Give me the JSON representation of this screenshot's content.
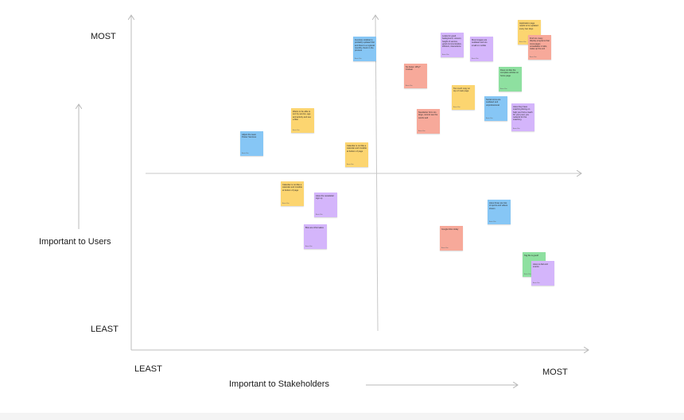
{
  "axes": {
    "y_top": "MOST",
    "y_bottom": "LEAST",
    "y_title": "Important to Users",
    "x_left": "LEAST",
    "x_right": "MOST",
    "x_title": "Important to Stakeholders"
  },
  "colors": {
    "yellow": "#fcd570",
    "purple": "#d4b5fb",
    "pink": "#f7a99a",
    "blue": "#86c6f5",
    "green": "#8ee0a0"
  },
  "notes": [
    {
      "color": "blue",
      "text": "Inventory sidebar is probably updated first and there's a regional monthly check in the process",
      "author": "Anna Kim"
    },
    {
      "color": "purple",
      "text": "Looks for good background, uneven, height of service, good communication, efficient, interactions",
      "author": "Anna Kim"
    },
    {
      "color": "purple",
      "text": "Most images are outdated and too small on mobile",
      "author": "Anna Kim"
    },
    {
      "color": "yellow",
      "text": "Application page needs to be updated every two days",
      "author": "Anna Kim"
    },
    {
      "color": "pink",
      "text": "Find too many display programs that most pages unreadable in tabs, make up the exit",
      "author": "Anna Kim"
    },
    {
      "color": "pink",
      "text": "No footer. Why? Unclear",
      "author": "Anna Kim"
    },
    {
      "color": "green",
      "text": "Does not like the complete articles on home page",
      "author": "Anna Kim"
    },
    {
      "color": "yellow",
      "text": "Too much copy on top of main page",
      "author": "Anna Kim"
    },
    {
      "color": "blue",
      "text": "Social icons are outdated and unprofessional",
      "author": "Anna Kim"
    },
    {
      "color": "purple",
      "text": "Likes they have coaching listing on help you find a coach for your pool, you network for the coaching",
      "author": "Anna Kim"
    },
    {
      "color": "pink",
      "text": "Newsletter form too large, cannot see the words well",
      "author": "Anna Kim"
    },
    {
      "color": "yellow",
      "text": "Wants to be able to sort by service, age and activity and use a filter",
      "author": "Anna Kim"
    },
    {
      "color": "blue",
      "text": "Adjust the team Poster Services",
      "author": "Anna Kim"
    },
    {
      "color": "yellow",
      "text": "Calendar is not like a calendar and invisible at bottom of page",
      "author": "Anna Kim"
    },
    {
      "color": "yellow",
      "text": "Calendar is not like a calendar and invisible at bottom of page",
      "author": "Anna Kim"
    },
    {
      "color": "purple",
      "text": "Likes the newsletter sign up",
      "author": "Anna Kim"
    },
    {
      "color": "purple",
      "text": "Bios are informative",
      "author": "Anna Kim"
    },
    {
      "color": "blue",
      "text": "Likes those are lots of sports and videos shown",
      "author": "Anna Kim"
    },
    {
      "color": "pink",
      "text": "Google links today",
      "author": "Anna Kim"
    },
    {
      "color": "green",
      "text": "Tag file is good!",
      "author": "Anna Kim"
    },
    {
      "color": "purple",
      "text": "Likes to dial and events",
      "author": "Anna Kim"
    }
  ]
}
